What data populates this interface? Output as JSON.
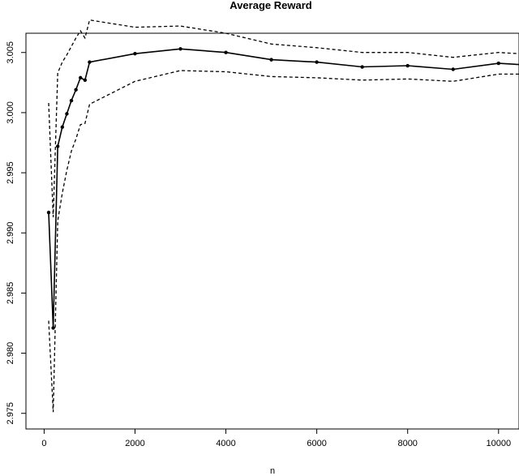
{
  "chart_data": {
    "type": "line",
    "title": "Average Reward",
    "xlabel": "n",
    "ylabel": "",
    "xlim": [
      -400,
      10450
    ],
    "ylim": [
      2.9737,
      3.0066
    ],
    "xticks": [
      0,
      2000,
      4000,
      6000,
      8000,
      10000
    ],
    "yticks": [
      2.975,
      2.98,
      2.985,
      2.99,
      2.995,
      3.0,
      3.005
    ],
    "xtick_labels": [
      "0",
      "2000",
      "4000",
      "6000",
      "8000",
      "10000"
    ],
    "ytick_labels": [
      "2.975",
      "2.980",
      "2.985",
      "2.990",
      "2.995",
      "3.000",
      "3.005"
    ],
    "grid": false,
    "x": [
      100,
      200,
      300,
      400,
      500,
      600,
      700,
      800,
      900,
      1000,
      2000,
      3000,
      4000,
      5000,
      6000,
      7000,
      8000,
      9000,
      10000,
      10450
    ],
    "series": [
      {
        "style": "solid-markers",
        "values": [
          2.9917,
          2.9821,
          2.9972,
          2.9988,
          2.9999,
          3.001,
          3.0019,
          3.0029,
          3.0027,
          3.0042,
          3.0049,
          3.0053,
          3.005,
          3.0044,
          3.0042,
          3.0038,
          3.0039,
          3.0036,
          3.0041,
          3.004
        ]
      },
      {
        "style": "dashed",
        "values": [
          3.0008,
          2.9913,
          3.0033,
          3.0042,
          3.0048,
          3.0055,
          3.0062,
          3.0068,
          3.0062,
          3.0077,
          3.0071,
          3.0072,
          3.0066,
          3.0057,
          3.0054,
          3.005,
          3.005,
          3.0046,
          3.005,
          3.0049
        ]
      },
      {
        "style": "dashed",
        "values": [
          2.9827,
          2.9751,
          2.991,
          2.9933,
          2.9952,
          2.9968,
          2.9978,
          2.999,
          2.9991,
          3.0007,
          3.0026,
          3.0035,
          3.0034,
          3.003,
          3.0029,
          3.0027,
          3.0028,
          3.0026,
          3.0032,
          3.0032
        ]
      }
    ]
  }
}
